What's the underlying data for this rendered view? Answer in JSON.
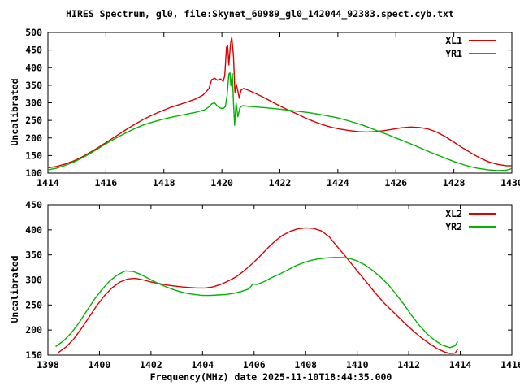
{
  "title": "HIRES Spectrum, gl0, file:Skynet_60989_gl0_142044_92383.spect.cyb.txt",
  "colors": {
    "series_red": "#dd0000",
    "series_green": "#00b400",
    "axis": "#000000",
    "background": "#ffffff"
  },
  "chart_data": [
    {
      "type": "line",
      "ylabel": "Uncalibrated",
      "xlim": [
        1414,
        1430
      ],
      "ylim": [
        100,
        500
      ],
      "xticks": [
        1414,
        1416,
        1418,
        1420,
        1422,
        1424,
        1426,
        1428,
        1430
      ],
      "yticks": [
        100,
        150,
        200,
        250,
        300,
        350,
        400,
        450,
        500
      ],
      "grid": false,
      "legend_position": "top-right",
      "series": [
        {
          "name": "XL1",
          "color": "#dd0000",
          "points": [
            [
              1414.0,
              115
            ],
            [
              1414.3,
              119
            ],
            [
              1414.6,
              126
            ],
            [
              1414.9,
              135
            ],
            [
              1415.2,
              147
            ],
            [
              1415.5,
              161
            ],
            [
              1415.8,
              176
            ],
            [
              1416.1,
              192
            ],
            [
              1416.4,
              208
            ],
            [
              1416.7,
              224
            ],
            [
              1417.0,
              239
            ],
            [
              1417.3,
              253
            ],
            [
              1417.6,
              265
            ],
            [
              1417.9,
              276
            ],
            [
              1418.2,
              286
            ],
            [
              1418.5,
              294
            ],
            [
              1418.8,
              302
            ],
            [
              1419.1,
              311
            ],
            [
              1419.35,
              322
            ],
            [
              1419.55,
              340
            ],
            [
              1419.65,
              366
            ],
            [
              1419.75,
              370
            ],
            [
              1419.85,
              364
            ],
            [
              1419.95,
              368
            ],
            [
              1420.05,
              361
            ],
            [
              1420.1,
              378
            ],
            [
              1420.16,
              458
            ],
            [
              1420.2,
              462
            ],
            [
              1420.24,
              408
            ],
            [
              1420.3,
              468
            ],
            [
              1420.34,
              487
            ],
            [
              1420.4,
              432
            ],
            [
              1420.45,
              330
            ],
            [
              1420.5,
              352
            ],
            [
              1420.56,
              330
            ],
            [
              1420.6,
              313
            ],
            [
              1420.66,
              336
            ],
            [
              1420.75,
              341
            ],
            [
              1420.9,
              336
            ],
            [
              1421.1,
              329
            ],
            [
              1421.4,
              317
            ],
            [
              1421.7,
              304
            ],
            [
              1422.0,
              291
            ],
            [
              1422.3,
              279
            ],
            [
              1422.6,
              268
            ],
            [
              1422.9,
              256
            ],
            [
              1423.2,
              246
            ],
            [
              1423.5,
              237
            ],
            [
              1423.8,
              230
            ],
            [
              1424.1,
              225
            ],
            [
              1424.4,
              221
            ],
            [
              1424.7,
              218
            ],
            [
              1425.0,
              217
            ],
            [
              1425.3,
              218
            ],
            [
              1425.6,
              221
            ],
            [
              1425.9,
              225
            ],
            [
              1426.2,
              229
            ],
            [
              1426.5,
              231
            ],
            [
              1426.8,
              230
            ],
            [
              1427.1,
              226
            ],
            [
              1427.4,
              217
            ],
            [
              1427.7,
              204
            ],
            [
              1428.0,
              188
            ],
            [
              1428.3,
              172
            ],
            [
              1428.6,
              157
            ],
            [
              1428.9,
              143
            ],
            [
              1429.2,
              132
            ],
            [
              1429.5,
              125
            ],
            [
              1429.8,
              121
            ],
            [
              1430.0,
              121
            ]
          ]
        },
        {
          "name": "YR1",
          "color": "#00b400",
          "points": [
            [
              1414.0,
              109
            ],
            [
              1414.3,
              114
            ],
            [
              1414.6,
              122
            ],
            [
              1414.9,
              132
            ],
            [
              1415.2,
              144
            ],
            [
              1415.5,
              158
            ],
            [
              1415.8,
              173
            ],
            [
              1416.1,
              188
            ],
            [
              1416.4,
              202
            ],
            [
              1416.7,
              215
            ],
            [
              1417.0,
              227
            ],
            [
              1417.3,
              237
            ],
            [
              1417.6,
              245
            ],
            [
              1417.9,
              252
            ],
            [
              1418.2,
              258
            ],
            [
              1418.5,
              263
            ],
            [
              1418.8,
              268
            ],
            [
              1419.1,
              273
            ],
            [
              1419.4,
              280
            ],
            [
              1419.55,
              288
            ],
            [
              1419.65,
              297
            ],
            [
              1419.75,
              300
            ],
            [
              1419.85,
              290
            ],
            [
              1419.95,
              285
            ],
            [
              1420.05,
              284
            ],
            [
              1420.12,
              289
            ],
            [
              1420.18,
              320
            ],
            [
              1420.24,
              382
            ],
            [
              1420.28,
              385
            ],
            [
              1420.31,
              348
            ],
            [
              1420.36,
              383
            ],
            [
              1420.4,
              300
            ],
            [
              1420.44,
              236
            ],
            [
              1420.49,
              300
            ],
            [
              1420.55,
              260
            ],
            [
              1420.62,
              286
            ],
            [
              1420.72,
              292
            ],
            [
              1420.9,
              290
            ],
            [
              1421.2,
              288
            ],
            [
              1421.5,
              286
            ],
            [
              1422.0,
              282
            ],
            [
              1422.5,
              277
            ],
            [
              1423.0,
              272
            ],
            [
              1423.5,
              265
            ],
            [
              1424.0,
              257
            ],
            [
              1424.4,
              248
            ],
            [
              1424.8,
              238
            ],
            [
              1425.1,
              229
            ],
            [
              1425.4,
              219
            ],
            [
              1425.7,
              210
            ],
            [
              1426.0,
              200
            ],
            [
              1426.4,
              187
            ],
            [
              1426.8,
              173
            ],
            [
              1427.2,
              159
            ],
            [
              1427.6,
              146
            ],
            [
              1428.0,
              133
            ],
            [
              1428.4,
              122
            ],
            [
              1428.8,
              114
            ],
            [
              1429.2,
              109
            ],
            [
              1429.5,
              107
            ],
            [
              1429.8,
              108
            ],
            [
              1430.0,
              113
            ]
          ]
        }
      ]
    },
    {
      "type": "line",
      "ylabel": "Uncalibrated",
      "xlabel": "Frequency(MHz) date 2025-11-10T18:44:35.000",
      "xlim": [
        1398,
        1416
      ],
      "ylim": [
        150,
        450
      ],
      "xticks": [
        1398,
        1400,
        1402,
        1404,
        1406,
        1408,
        1410,
        1412,
        1414,
        1416
      ],
      "yticks": [
        150,
        200,
        250,
        300,
        350,
        400,
        450
      ],
      "grid": false,
      "legend_position": "top-right",
      "series": [
        {
          "name": "XL2",
          "color": "#dd0000",
          "points": [
            [
              1398.4,
              155
            ],
            [
              1398.7,
              166
            ],
            [
              1399.0,
              182
            ],
            [
              1399.3,
              203
            ],
            [
              1399.6,
              226
            ],
            [
              1399.9,
              249
            ],
            [
              1400.2,
              269
            ],
            [
              1400.5,
              285
            ],
            [
              1400.8,
              296
            ],
            [
              1401.1,
              302
            ],
            [
              1401.4,
              303
            ],
            [
              1401.7,
              300
            ],
            [
              1402.0,
              296
            ],
            [
              1402.3,
              293
            ],
            [
              1402.6,
              290
            ],
            [
              1402.9,
              288
            ],
            [
              1403.2,
              286
            ],
            [
              1403.5,
              285
            ],
            [
              1403.8,
              284
            ],
            [
              1404.1,
              284
            ],
            [
              1404.4,
              286
            ],
            [
              1404.7,
              291
            ],
            [
              1405.0,
              298
            ],
            [
              1405.3,
              306
            ],
            [
              1405.6,
              318
            ],
            [
              1405.9,
              331
            ],
            [
              1406.2,
              346
            ],
            [
              1406.5,
              362
            ],
            [
              1406.8,
              377
            ],
            [
              1407.1,
              389
            ],
            [
              1407.4,
              397
            ],
            [
              1407.7,
              402
            ],
            [
              1408.0,
              404
            ],
            [
              1408.3,
              403
            ],
            [
              1408.6,
              398
            ],
            [
              1408.9,
              387
            ],
            [
              1409.2,
              368
            ],
            [
              1409.5,
              350
            ],
            [
              1409.8,
              331
            ],
            [
              1410.1,
              312
            ],
            [
              1410.4,
              293
            ],
            [
              1410.7,
              274
            ],
            [
              1411.0,
              256
            ],
            [
              1411.3,
              241
            ],
            [
              1411.6,
              226
            ],
            [
              1411.9,
              211
            ],
            [
              1412.2,
              197
            ],
            [
              1412.5,
              184
            ],
            [
              1412.8,
              173
            ],
            [
              1413.1,
              163
            ],
            [
              1413.4,
              156
            ],
            [
              1413.6,
              153
            ],
            [
              1413.8,
              154
            ],
            [
              1413.9,
              162
            ]
          ]
        },
        {
          "name": "YR2",
          "color": "#00b400",
          "points": [
            [
              1398.3,
              167
            ],
            [
              1398.6,
              178
            ],
            [
              1398.9,
              194
            ],
            [
              1399.2,
              214
            ],
            [
              1399.5,
              238
            ],
            [
              1399.8,
              261
            ],
            [
              1400.1,
              281
            ],
            [
              1400.4,
              298
            ],
            [
              1400.7,
              310
            ],
            [
              1401.0,
              318
            ],
            [
              1401.3,
              317
            ],
            [
              1401.6,
              311
            ],
            [
              1401.9,
              303
            ],
            [
              1402.2,
              295
            ],
            [
              1402.5,
              288
            ],
            [
              1402.8,
              282
            ],
            [
              1403.1,
              277
            ],
            [
              1403.4,
              273
            ],
            [
              1403.7,
              271
            ],
            [
              1404.0,
              269
            ],
            [
              1404.3,
              269
            ],
            [
              1404.6,
              270
            ],
            [
              1404.9,
              271
            ],
            [
              1405.2,
              273
            ],
            [
              1405.5,
              277
            ],
            [
              1405.8,
              282
            ],
            [
              1405.95,
              292
            ],
            [
              1406.1,
              291
            ],
            [
              1406.4,
              297
            ],
            [
              1406.7,
              305
            ],
            [
              1407.0,
              312
            ],
            [
              1407.3,
              320
            ],
            [
              1407.6,
              328
            ],
            [
              1407.9,
              334
            ],
            [
              1408.2,
              339
            ],
            [
              1408.5,
              342
            ],
            [
              1408.8,
              344
            ],
            [
              1409.1,
              345
            ],
            [
              1409.4,
              345
            ],
            [
              1409.7,
              343
            ],
            [
              1410.0,
              338
            ],
            [
              1410.3,
              330
            ],
            [
              1410.6,
              319
            ],
            [
              1410.9,
              306
            ],
            [
              1411.2,
              291
            ],
            [
              1411.5,
              272
            ],
            [
              1411.8,
              252
            ],
            [
              1412.1,
              230
            ],
            [
              1412.4,
              210
            ],
            [
              1412.7,
              193
            ],
            [
              1413.0,
              180
            ],
            [
              1413.3,
              170
            ],
            [
              1413.6,
              165
            ],
            [
              1413.8,
              169
            ],
            [
              1413.9,
              177
            ]
          ]
        }
      ]
    }
  ]
}
